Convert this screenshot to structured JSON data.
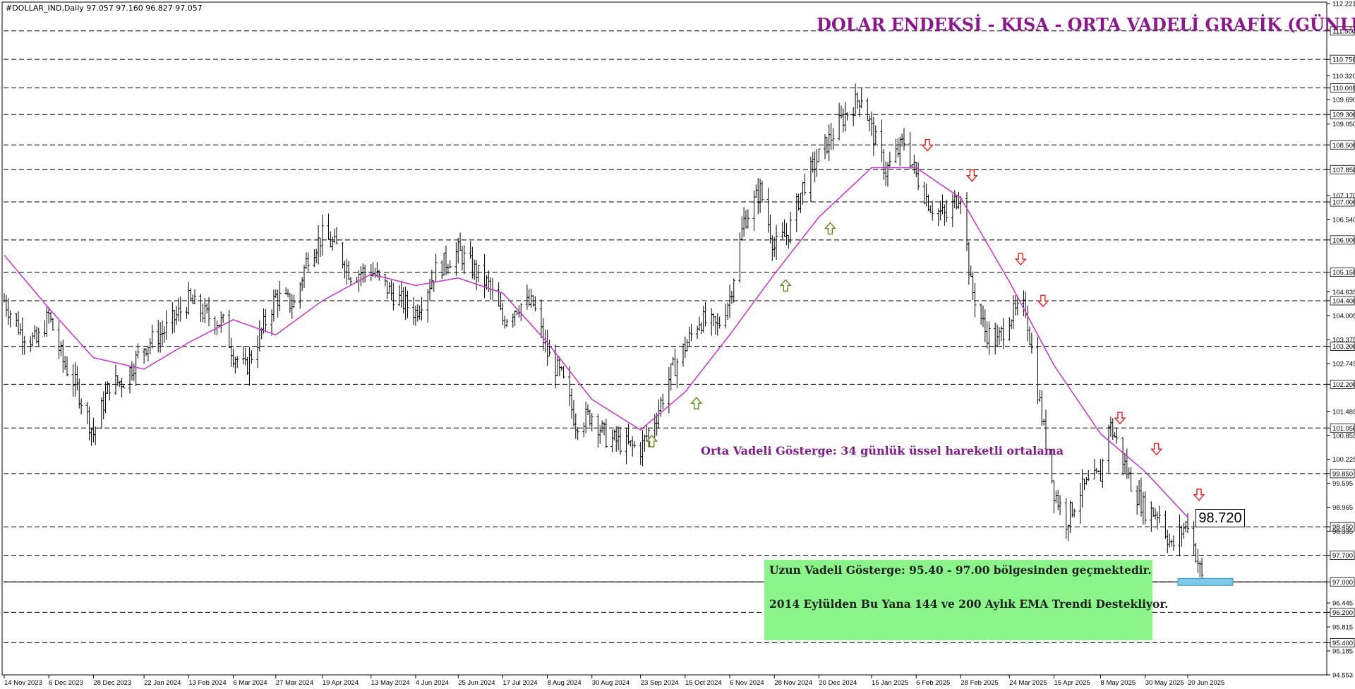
{
  "header": {
    "symbol_info": "#DOLLAR_IND,Daily  97.057 97.160 96.827 97.057",
    "title": "DOLAR ENDEKSİ - KISA - ORTA VADELİ GRAFİK (GÜNLÜK)"
  },
  "annotations": {
    "ema_label": "Orta Vadeli Gösterge: 34 günlük üssel hareketli ortalama",
    "long_term_line1": "Uzun Vadeli Gösterge: 95.40 - 97.00 bölgesinden geçmektedir.",
    "long_term_line2": "2014 Eylülden Bu Yana 144 ve 200 Aylık EMA Trendi Destekliyor.",
    "price_tag": "98.720"
  },
  "colors": {
    "candle": "#000000",
    "ema": "#c040c8",
    "title": "#8a1a8c",
    "up_arrow": "#5a8a1a",
    "down_arrow": "#e02020",
    "support_zone": "#7ec8e8",
    "note_box": "#8bf58b"
  },
  "chart_data": {
    "type": "candlestick",
    "timeframe": "Daily",
    "ylim": [
      94.553,
      112.221
    ],
    "y_tick_labels": [
      "112.221",
      "111.500",
      "110.750",
      "110.320",
      "110.000",
      "109.690",
      "109.300",
      "109.050",
      "108.500",
      "107.850",
      "107.170",
      "107.000",
      "106.540",
      "106.000",
      "105.150",
      "104.635",
      "104.400",
      "104.005",
      "103.375",
      "103.200",
      "102.745",
      "102.200",
      "101.485",
      "101.050",
      "100.855",
      "100.225",
      "99.850",
      "99.595",
      "98.965",
      "98.450",
      "98.335",
      "97.700",
      "97.000",
      "96.445",
      "96.200",
      "95.815",
      "95.400",
      "95.185",
      "94.553"
    ],
    "dashed_levels": [
      111.5,
      110.75,
      110.0,
      109.3,
      108.5,
      107.85,
      107.0,
      106.0,
      105.15,
      104.4,
      103.2,
      102.2,
      101.05,
      99.85,
      98.45,
      97.7,
      97.0,
      96.2,
      95.4
    ],
    "x_tick_labels": [
      "14 Nov 2023",
      "6 Dec 2023",
      "28 Dec 2023",
      "22 Jan 2024",
      "13 Feb 2024",
      "6 Mar 2024",
      "27 Mar 2024",
      "19 Apr 2024",
      "13 May 2024",
      "4 Jun 2024",
      "25 Jun 2024",
      "17 Jul 2024",
      "8 Aug 2024",
      "30 Aug 2024",
      "23 Sep 2024",
      "15 Oct 2024",
      "6 Nov 2024",
      "28 Nov 2024",
      "20 Dec 2024",
      "15 Jan 2025",
      "6 Feb 2025",
      "28 Feb 2025",
      "24 Mar 2025",
      "15 Apr 2025",
      "8 May 2025",
      "30 May 2025",
      "20 Jun 2025"
    ],
    "close_path": [
      {
        "date": "14 Nov 2023",
        "close": 104.4
      },
      {
        "date": "22 Nov 2023",
        "close": 103.6
      },
      {
        "date": "30 Nov 2023",
        "close": 103.3
      },
      {
        "date": "6 Dec 2023",
        "close": 104.0
      },
      {
        "date": "13 Dec 2023",
        "close": 102.8
      },
      {
        "date": "20 Dec 2023",
        "close": 102.1
      },
      {
        "date": "28 Dec 2023",
        "close": 100.9
      },
      {
        "date": "5 Jan 2024",
        "close": 102.2
      },
      {
        "date": "12 Jan 2024",
        "close": 102.3
      },
      {
        "date": "22 Jan 2024",
        "close": 103.2
      },
      {
        "date": "1 Feb 2024",
        "close": 103.6
      },
      {
        "date": "13 Feb 2024",
        "close": 104.4
      },
      {
        "date": "22 Feb 2024",
        "close": 104.0
      },
      {
        "date": "1 Mar 2024",
        "close": 103.8
      },
      {
        "date": "6 Mar 2024",
        "close": 103.0
      },
      {
        "date": "12 Mar 2024",
        "close": 102.6
      },
      {
        "date": "20 Mar 2024",
        "close": 103.6
      },
      {
        "date": "27 Mar 2024",
        "close": 104.5
      },
      {
        "date": "5 Apr 2024",
        "close": 104.3
      },
      {
        "date": "12 Apr 2024",
        "close": 105.6
      },
      {
        "date": "19 Apr 2024",
        "close": 106.1
      },
      {
        "date": "26 Apr 2024",
        "close": 105.8
      },
      {
        "date": "3 May 2024",
        "close": 105.1
      },
      {
        "date": "13 May 2024",
        "close": 105.2
      },
      {
        "date": "23 May 2024",
        "close": 104.6
      },
      {
        "date": "4 Jun 2024",
        "close": 104.1
      },
      {
        "date": "14 Jun 2024",
        "close": 105.2
      },
      {
        "date": "25 Jun 2024",
        "close": 105.7
      },
      {
        "date": "3 Jul 2024",
        "close": 105.2
      },
      {
        "date": "10 Jul 2024",
        "close": 104.8
      },
      {
        "date": "17 Jul 2024",
        "close": 103.9
      },
      {
        "date": "25 Jul 2024",
        "close": 104.3
      },
      {
        "date": "1 Aug 2024",
        "close": 104.3
      },
      {
        "date": "8 Aug 2024",
        "close": 103.0
      },
      {
        "date": "15 Aug 2024",
        "close": 102.4
      },
      {
        "date": "22 Aug 2024",
        "close": 101.2
      },
      {
        "date": "30 Aug 2024",
        "close": 101.4
      },
      {
        "date": "6 Sep 2024",
        "close": 100.8
      },
      {
        "date": "16 Sep 2024",
        "close": 100.6
      },
      {
        "date": "23 Sep 2024",
        "close": 100.5
      },
      {
        "date": "1 Oct 2024",
        "close": 101.4
      },
      {
        "date": "8 Oct 2024",
        "close": 102.5
      },
      {
        "date": "15 Oct 2024",
        "close": 103.2
      },
      {
        "date": "22 Oct 2024",
        "close": 103.9
      },
      {
        "date": "31 Oct 2024",
        "close": 103.7
      },
      {
        "date": "6 Nov 2024",
        "close": 104.5
      },
      {
        "date": "13 Nov 2024",
        "close": 106.5
      },
      {
        "date": "21 Nov 2024",
        "close": 107.3
      },
      {
        "date": "28 Nov 2024",
        "close": 105.8
      },
      {
        "date": "5 Dec 2024",
        "close": 106.2
      },
      {
        "date": "12 Dec 2024",
        "close": 107.4
      },
      {
        "date": "20 Dec 2024",
        "close": 108.2
      },
      {
        "date": "2 Jan 2025",
        "close": 109.3
      },
      {
        "date": "10 Jan 2025",
        "close": 109.8
      },
      {
        "date": "15 Jan 2025",
        "close": 108.9
      },
      {
        "date": "22 Jan 2025",
        "close": 107.8
      },
      {
        "date": "31 Jan 2025",
        "close": 108.6
      },
      {
        "date": "6 Feb 2025",
        "close": 107.7
      },
      {
        "date": "13 Feb 2025",
        "close": 106.9
      },
      {
        "date": "21 Feb 2025",
        "close": 106.6
      },
      {
        "date": "28 Feb 2025",
        "close": 107.3
      },
      {
        "date": "5 Mar 2025",
        "close": 104.8
      },
      {
        "date": "12 Mar 2025",
        "close": 103.6
      },
      {
        "date": "18 Mar 2025",
        "close": 103.3
      },
      {
        "date": "24 Mar 2025",
        "close": 104.0
      },
      {
        "date": "1 Apr 2025",
        "close": 104.2
      },
      {
        "date": "4 Apr 2025",
        "close": 103.1
      },
      {
        "date": "10 Apr 2025",
        "close": 101.0
      },
      {
        "date": "15 Apr 2025",
        "close": 99.4
      },
      {
        "date": "21 Apr 2025",
        "close": 98.6
      },
      {
        "date": "28 Apr 2025",
        "close": 99.4
      },
      {
        "date": "8 May 2025",
        "close": 99.8
      },
      {
        "date": "12 May 2025",
        "close": 101.2
      },
      {
        "date": "16 May 2025",
        "close": 100.7
      },
      {
        "date": "23 May 2025",
        "close": 99.6
      },
      {
        "date": "30 May 2025",
        "close": 98.9
      },
      {
        "date": "6 Jun 2025",
        "close": 98.8
      },
      {
        "date": "12 Jun 2025",
        "close": 97.9
      },
      {
        "date": "20 Jun 2025",
        "close": 98.6
      },
      {
        "date": "27 Jun 2025",
        "close": 97.1
      }
    ],
    "series": [
      {
        "name": "Orta Vadeli Gösterge: 34 günlük üssel hareketli ortalama",
        "values": [
          {
            "date": "14 Nov 2023",
            "value": 105.6
          },
          {
            "date": "6 Dec 2023",
            "value": 104.2
          },
          {
            "date": "28 Dec 2023",
            "value": 102.9
          },
          {
            "date": "22 Jan 2024",
            "value": 102.6
          },
          {
            "date": "13 Feb 2024",
            "value": 103.3
          },
          {
            "date": "6 Mar 2024",
            "value": 103.9
          },
          {
            "date": "27 Mar 2024",
            "value": 103.5
          },
          {
            "date": "19 Apr 2024",
            "value": 104.4
          },
          {
            "date": "13 May 2024",
            "value": 105.1
          },
          {
            "date": "4 Jun 2024",
            "value": 104.8
          },
          {
            "date": "25 Jun 2024",
            "value": 105.0
          },
          {
            "date": "17 Jul 2024",
            "value": 104.6
          },
          {
            "date": "8 Aug 2024",
            "value": 103.3
          },
          {
            "date": "30 Aug 2024",
            "value": 101.8
          },
          {
            "date": "23 Sep 2024",
            "value": 101.0
          },
          {
            "date": "15 Oct 2024",
            "value": 102.0
          },
          {
            "date": "6 Nov 2024",
            "value": 103.5
          },
          {
            "date": "28 Nov 2024",
            "value": 105.1
          },
          {
            "date": "20 Dec 2024",
            "value": 106.6
          },
          {
            "date": "15 Jan 2025",
            "value": 107.9
          },
          {
            "date": "6 Feb 2025",
            "value": 107.9
          },
          {
            "date": "28 Feb 2025",
            "value": 107.1
          },
          {
            "date": "24 Mar 2025",
            "value": 104.9
          },
          {
            "date": "15 Apr 2025",
            "value": 102.7
          },
          {
            "date": "8 May 2025",
            "value": 100.9
          },
          {
            "date": "30 May 2025",
            "value": 99.9
          },
          {
            "date": "20 Jun 2025",
            "value": 98.7
          }
        ]
      }
    ],
    "up_signals": [
      "23 Sep 2024",
      "15 Oct 2024",
      "28 Nov 2024",
      "20 Dec 2024"
    ],
    "down_signals": [
      "6 Feb 2025",
      "28 Feb 2025",
      "24 Mar 2025",
      "4 Apr 2025",
      "12 May 2025",
      "30 May 2025",
      "20 Jun 2025"
    ],
    "support_zone": [
      97.0,
      97.0
    ],
    "last_ema_value": 98.72
  }
}
